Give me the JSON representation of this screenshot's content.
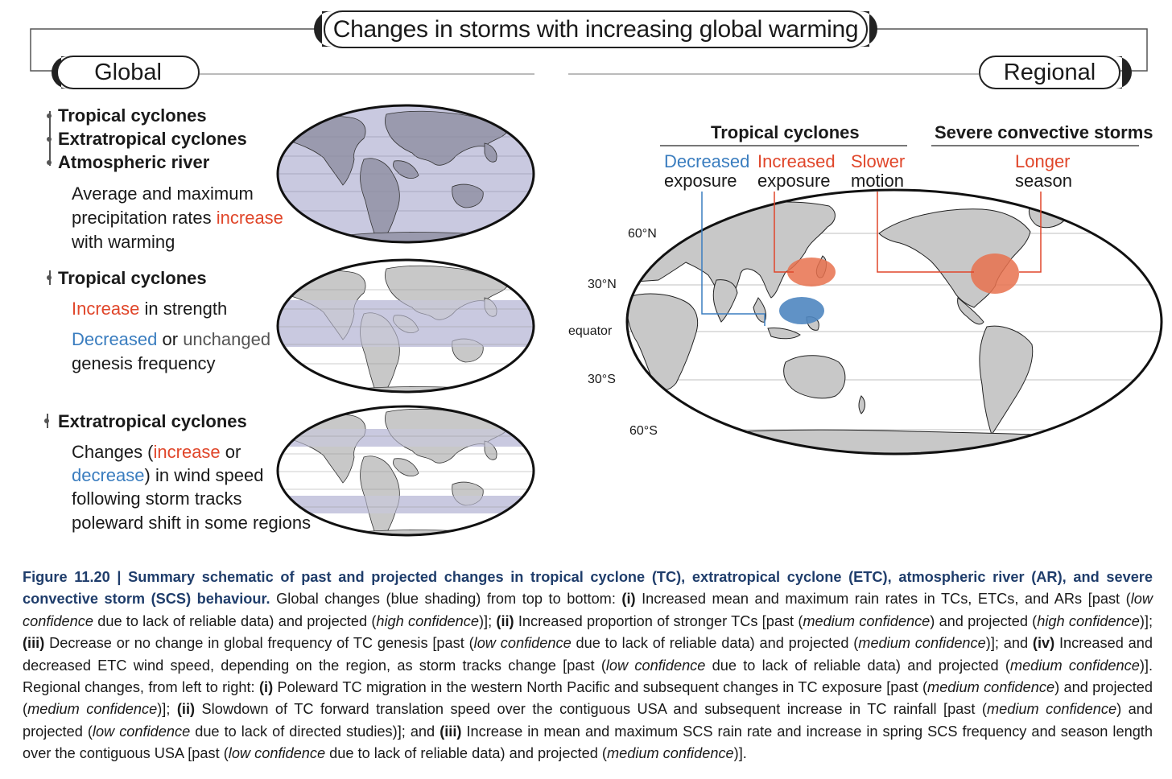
{
  "title": "Changes in storms with increasing global warming",
  "global_label": "Global",
  "regional_label": "Regional",
  "global": {
    "block1": {
      "headings": [
        "Tropical cyclones",
        "Extratropical cyclones",
        "Atmospheric river"
      ],
      "line1": "Average and maximum",
      "line2_pre": "precipitation rates ",
      "line2_red": "increase",
      "line3": "with warming"
    },
    "block2": {
      "heading": "Tropical cyclones",
      "l1_red": "Increase",
      "l1_rest": " in strength",
      "l2_blue": "Decreased",
      "l2_mid": " or ",
      "l2_grey": "unchanged",
      "l3": "genesis frequency"
    },
    "block3": {
      "heading": "Extratropical cyclones",
      "l1_pre": "Changes (",
      "l1_red": "increase",
      "l1_post": " or",
      "l2_blue": "decrease",
      "l2_post": ") in wind speed",
      "l3": "following storm tracks",
      "l4": "poleward shift in some regions"
    }
  },
  "regional": {
    "tc_header": "Tropical cyclones",
    "scs_header": "Severe convective storms",
    "labels": {
      "decreased": "Decreased",
      "increased": "Increased",
      "slower": "Slower",
      "longer": "Longer",
      "exposure": "exposure",
      "motion": "motion",
      "season": "season"
    },
    "latitudes": [
      "60°N",
      "30°N",
      "equator",
      "30°S",
      "60°S"
    ]
  },
  "colors": {
    "red": "#e0462a",
    "blue": "#3a7dbf",
    "band": "#c9c9e0",
    "land": "#c8c8c8",
    "caption_title": "#1f3d6b"
  },
  "caption": {
    "fig_label": "Figure 11.20 | Summary schematic of past and projected changes in tropical cyclone (TC), extratropical cyclone (ETC), atmospheric river (AR), and severe convective storm (SCS) behaviour.",
    "p1": " Global changes (blue shading) from top to bottom: ",
    "r1": "(i)",
    "p2": " Increased mean and maximum rain rates in TCs, ETCs, and ARs [past (",
    "i1": "low confidence",
    "p3": " due to lack of reliable data) and projected (",
    "i2": "high confidence",
    "p4": ")]; ",
    "r2": "(ii)",
    "p5": " Increased proportion of stronger TCs [past (",
    "i3": "medium confidence",
    "p6": ") and projected (",
    "i4": "high confidence",
    "p7": ")]; ",
    "r3": "(iii)",
    "p8": " Decrease or no change in global frequency of TC genesis [past (",
    "i5": "low confidence",
    "p9": " due to lack of reliable data) and projected (",
    "i6": "medium confidence",
    "p10": ")]; and ",
    "r4": "(iv)",
    "p11": " Increased and decreased ETC wind speed, depending on the region, as storm tracks change [past (",
    "i7": "low confidence",
    "p12": " due to lack of reliable data) and projected (",
    "i8": "medium confidence",
    "p13": ")]. Regional changes, from left to right: ",
    "r5": "(i)",
    "p14": " Poleward TC migration in the western North Pacific and subsequent changes in TC exposure [past (",
    "i9": "medium confidence",
    "p15": ") and projected (",
    "i10": "medium confidence",
    "p16": ")]; ",
    "r6": "(ii)",
    "p17": " Slowdown of TC forward translation speed over the contiguous USA and subsequent increase in TC rainfall [past (",
    "i11": "medium confidence",
    "p18": ") and projected (",
    "i12": "low confidence",
    "p19": " due to lack of directed studies)]; and ",
    "r7": "(iii)",
    "p20": " Increase in mean and maximum SCS rain rate and increase in spring SCS frequency and season length over the contiguous USA [past (",
    "i13": "low confidence",
    "p21": " due to lack of reliable data) and projected (",
    "i14": "medium confidence",
    "p22": ")]."
  }
}
